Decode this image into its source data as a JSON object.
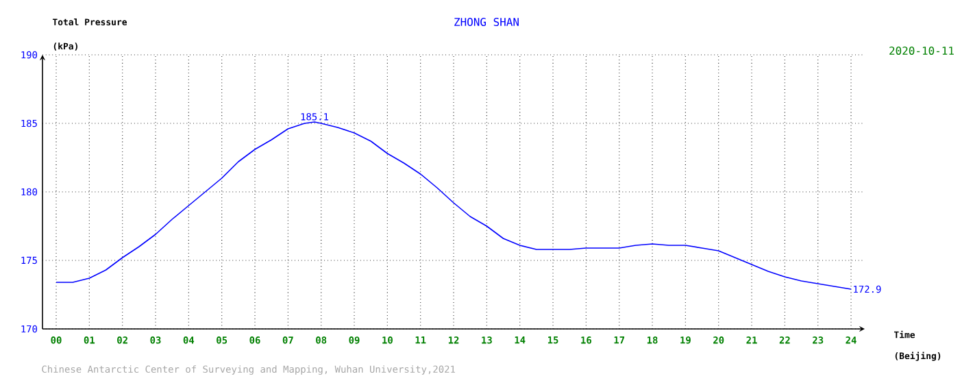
{
  "chart_data": {
    "type": "line",
    "title": "ZHONG SHAN",
    "ylabel": "Total Pressure",
    "xlabel": "Time",
    "annotations": [
      "2020-10-11",
      "(kPa)",
      "(Beijing)",
      "Chinese Antarctic Center of Surveying and Mapping, Wuhan University,2021",
      {
        "text": "185.1",
        "x": 7.8,
        "y": 185.1
      },
      {
        "text": "172.9",
        "x": 24,
        "y": 172.9
      }
    ],
    "x": [
      0,
      0.5,
      1,
      1.5,
      2,
      2.5,
      3,
      3.5,
      4,
      4.5,
      5,
      5.5,
      6,
      6.5,
      7,
      7.5,
      7.8,
      8,
      8.5,
      9,
      9.5,
      10,
      10.5,
      11,
      11.5,
      12,
      12.5,
      13,
      13.5,
      14,
      14.5,
      15,
      15.5,
      16,
      16.5,
      17,
      17.5,
      18,
      18.5,
      19,
      19.5,
      20,
      20.5,
      21,
      21.5,
      22,
      22.5,
      23,
      23.5,
      24
    ],
    "series": [
      {
        "color": "#0000ff",
        "values": [
          173.4,
          173.4,
          173.7,
          174.3,
          175.2,
          176.0,
          176.9,
          178.0,
          179.0,
          180.0,
          181.0,
          182.2,
          183.1,
          183.8,
          184.6,
          185.0,
          185.1,
          185.0,
          184.7,
          184.3,
          183.7,
          182.8,
          182.1,
          181.3,
          180.3,
          179.2,
          178.2,
          177.5,
          176.6,
          176.1,
          175.8,
          175.8,
          175.8,
          175.9,
          175.9,
          175.9,
          176.1,
          176.2,
          176.1,
          176.1,
          175.9,
          175.7,
          175.2,
          174.7,
          174.2,
          173.8,
          173.5,
          173.3,
          173.1,
          172.9
        ]
      }
    ],
    "xlim": [
      0,
      24
    ],
    "ylim": [
      170,
      190
    ],
    "xticks": [
      {
        "value": 0,
        "label": "00"
      },
      {
        "value": 1,
        "label": "01"
      },
      {
        "value": 2,
        "label": "02"
      },
      {
        "value": 3,
        "label": "03"
      },
      {
        "value": 4,
        "label": "04"
      },
      {
        "value": 5,
        "label": "05"
      },
      {
        "value": 6,
        "label": "06"
      },
      {
        "value": 7,
        "label": "07"
      },
      {
        "value": 8,
        "label": "08"
      },
      {
        "value": 9,
        "label": "09"
      },
      {
        "value": 10,
        "label": "10"
      },
      {
        "value": 11,
        "label": "11"
      },
      {
        "value": 12,
        "label": "12"
      },
      {
        "value": 13,
        "label": "13"
      },
      {
        "value": 14,
        "label": "14"
      },
      {
        "value": 15,
        "label": "15"
      },
      {
        "value": 16,
        "label": "16"
      },
      {
        "value": 17,
        "label": "17"
      },
      {
        "value": 18,
        "label": "18"
      },
      {
        "value": 19,
        "label": "19"
      },
      {
        "value": 20,
        "label": "20"
      },
      {
        "value": 21,
        "label": "21"
      },
      {
        "value": 22,
        "label": "22"
      },
      {
        "value": 23,
        "label": "23"
      },
      {
        "value": 24,
        "label": "24"
      }
    ],
    "yticks": [
      170,
      175,
      180,
      185,
      190
    ],
    "grid": true
  }
}
